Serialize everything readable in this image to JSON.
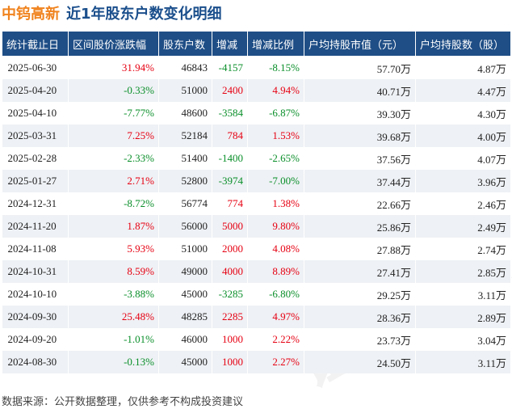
{
  "header": {
    "stock_name": "中钨高新",
    "title": "近1年股东户数变化明细"
  },
  "table": {
    "columns": [
      "统计截止日",
      "区间股价涨跌幅",
      "股东户数",
      "增减",
      "增减比例",
      "户均持股市值（元）",
      "户均持股数（股）"
    ],
    "rows": [
      {
        "date": "2025-06-30",
        "price_change": "31.94%",
        "holders": "46843",
        "change": "-4157",
        "change_ratio": "-8.15%",
        "avg_value": "57.70万",
        "avg_shares": "4.87万"
      },
      {
        "date": "2025-04-20",
        "price_change": "-0.33%",
        "holders": "51000",
        "change": "2400",
        "change_ratio": "4.94%",
        "avg_value": "40.71万",
        "avg_shares": "4.47万"
      },
      {
        "date": "2025-04-10",
        "price_change": "-7.77%",
        "holders": "48600",
        "change": "-3584",
        "change_ratio": "-6.87%",
        "avg_value": "39.30万",
        "avg_shares": "4.30万"
      },
      {
        "date": "2025-03-31",
        "price_change": "7.25%",
        "holders": "52184",
        "change": "784",
        "change_ratio": "1.53%",
        "avg_value": "39.68万",
        "avg_shares": "4.00万"
      },
      {
        "date": "2025-02-28",
        "price_change": "-2.33%",
        "holders": "51400",
        "change": "-1400",
        "change_ratio": "-2.65%",
        "avg_value": "37.56万",
        "avg_shares": "4.07万"
      },
      {
        "date": "2025-01-27",
        "price_change": "2.71%",
        "holders": "52800",
        "change": "-3974",
        "change_ratio": "-7.00%",
        "avg_value": "37.44万",
        "avg_shares": "3.96万"
      },
      {
        "date": "2024-12-31",
        "price_change": "-8.72%",
        "holders": "56774",
        "change": "774",
        "change_ratio": "1.38%",
        "avg_value": "22.66万",
        "avg_shares": "2.46万"
      },
      {
        "date": "2024-11-20",
        "price_change": "1.87%",
        "holders": "56000",
        "change": "5000",
        "change_ratio": "9.80%",
        "avg_value": "25.86万",
        "avg_shares": "2.49万"
      },
      {
        "date": "2024-11-08",
        "price_change": "5.93%",
        "holders": "51000",
        "change": "2000",
        "change_ratio": "4.08%",
        "avg_value": "27.88万",
        "avg_shares": "2.74万"
      },
      {
        "date": "2024-10-31",
        "price_change": "8.59%",
        "holders": "49000",
        "change": "4000",
        "change_ratio": "8.89%",
        "avg_value": "27.41万",
        "avg_shares": "2.85万"
      },
      {
        "date": "2024-10-10",
        "price_change": "-3.88%",
        "holders": "45000",
        "change": "-3285",
        "change_ratio": "-6.80%",
        "avg_value": "29.25万",
        "avg_shares": "3.11万"
      },
      {
        "date": "2024-09-30",
        "price_change": "25.48%",
        "holders": "48285",
        "change": "2285",
        "change_ratio": "4.97%",
        "avg_value": "28.36万",
        "avg_shares": "2.89万"
      },
      {
        "date": "2024-09-20",
        "price_change": "-1.01%",
        "holders": "46000",
        "change": "1000",
        "change_ratio": "2.22%",
        "avg_value": "23.73万",
        "avg_shares": "3.04万"
      },
      {
        "date": "2024-08-30",
        "price_change": "-0.13%",
        "holders": "45000",
        "change": "1000",
        "change_ratio": "2.27%",
        "avg_value": "24.50万",
        "avg_shares": "3.11万"
      }
    ]
  },
  "watermark": "证券之星",
  "footer": "数据来源：公开数据整理，仅供参考不构成投资建议",
  "colors": {
    "header_bg": "#1f4e86",
    "stock_name": "#f0831e",
    "title": "#1b4f8c",
    "up": "#e60012",
    "down": "#0a8f2a",
    "stripe": "#eef1f5"
  }
}
